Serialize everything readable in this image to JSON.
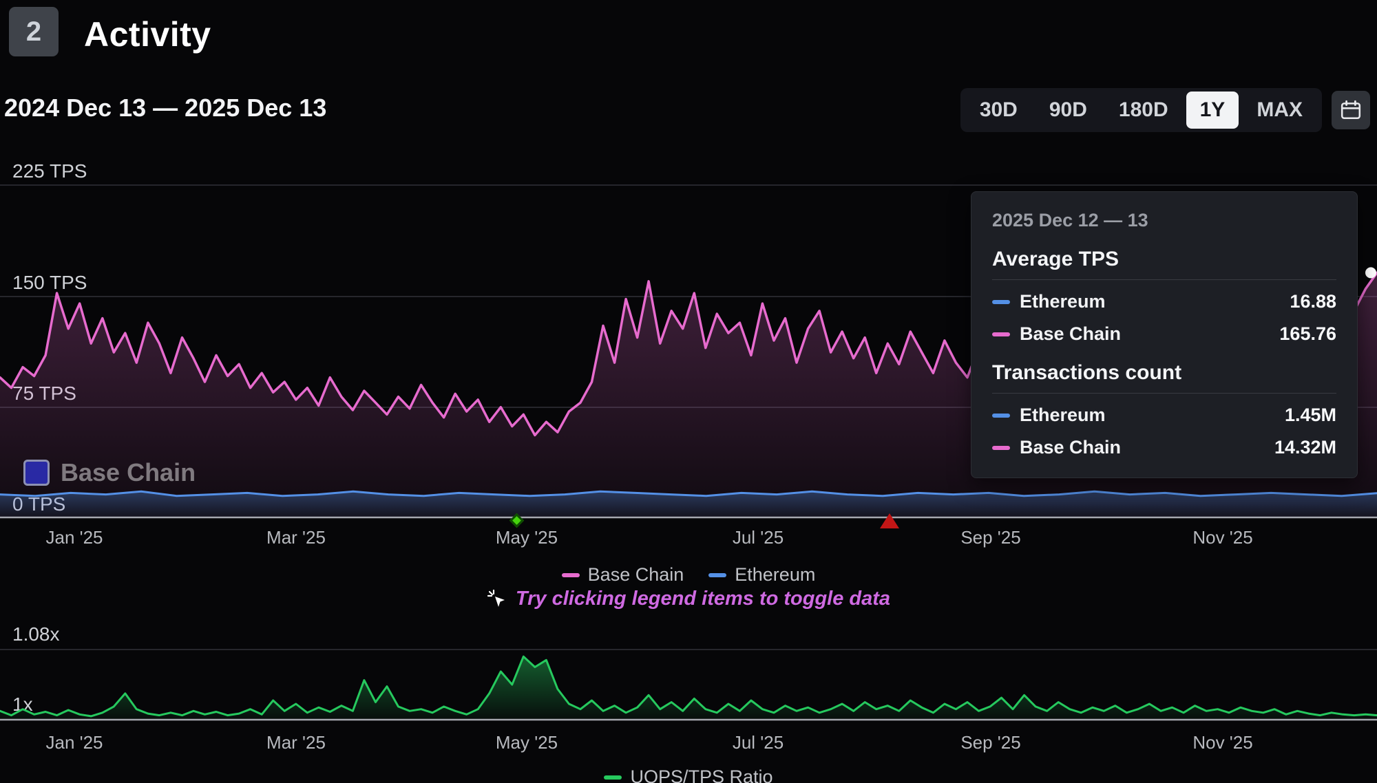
{
  "header": {
    "rank": "2",
    "title": "Activity",
    "date_range": "2024 Dec 13 — 2025 Dec 13"
  },
  "timeframe": {
    "options": [
      {
        "label": "30D",
        "active": false
      },
      {
        "label": "90D",
        "active": false
      },
      {
        "label": "180D",
        "active": false
      },
      {
        "label": "1Y",
        "active": true
      },
      {
        "label": "MAX",
        "active": false
      }
    ]
  },
  "icons": {
    "calendar": "calendar-icon",
    "hint": "cursor-click-icon"
  },
  "colors": {
    "base_chain": "#e76bce",
    "ethereum": "#5490e6",
    "ratio": "#26c95e",
    "hint_text": "#cf6ae2",
    "active_button_bg": "#f2f3f5",
    "milestone_diamond": "#46d40d",
    "milestone_triangle": "#c21616"
  },
  "watermark": {
    "label": "Base Chain"
  },
  "tooltip": {
    "date": "2025 Dec 12 — 13",
    "sections": [
      {
        "title": "Average TPS",
        "rows": [
          {
            "name": "Ethereum",
            "value": "16.88"
          },
          {
            "name": "Base Chain",
            "value": "165.76"
          }
        ]
      },
      {
        "title": "Transactions count",
        "rows": [
          {
            "name": "Ethereum",
            "value": "1.45M"
          },
          {
            "name": "Base Chain",
            "value": "14.32M"
          }
        ]
      }
    ]
  },
  "legend_tps": {
    "items": [
      {
        "label": "Base Chain"
      },
      {
        "label": "Ethereum"
      }
    ]
  },
  "hint": "Try clicking legend items to toggle data",
  "legend_ratio": {
    "items": [
      {
        "label": "UOPS/TPS Ratio"
      }
    ]
  },
  "chart_data": [
    {
      "type": "line",
      "title": "Average TPS",
      "x_range": [
        "2024 Dec 13",
        "2025 Dec 13"
      ],
      "x_labels": [
        "Jan '25",
        "Mar '25",
        "May '25",
        "Jul '25",
        "Sep '25",
        "Nov '25"
      ],
      "y_labels": [
        "225 TPS",
        "150 TPS",
        "75 TPS",
        "0 TPS"
      ],
      "ylim": [
        0,
        225
      ],
      "grid": "horizontal",
      "legend_position": "bottom",
      "series": [
        {
          "name": "Base Chain",
          "color": "#e76bce",
          "latest": 165.76,
          "values": [
            95,
            88,
            102,
            96,
            110,
            152,
            128,
            145,
            118,
            135,
            112,
            125,
            105,
            132,
            118,
            98,
            122,
            108,
            92,
            110,
            96,
            104,
            88,
            98,
            85,
            92,
            80,
            88,
            76,
            95,
            82,
            73,
            86,
            78,
            70,
            82,
            74,
            90,
            78,
            68,
            84,
            72,
            80,
            65,
            75,
            62,
            70,
            56,
            65,
            58,
            72,
            78,
            92,
            130,
            105,
            148,
            122,
            160,
            118,
            140,
            128,
            152,
            115,
            138,
            125,
            132,
            110,
            145,
            120,
            135,
            105,
            128,
            140,
            112,
            126,
            108,
            122,
            98,
            118,
            104,
            126,
            112,
            98,
            120,
            105,
            95,
            115,
            102,
            122,
            108,
            96,
            118,
            104,
            112,
            99,
            116,
            106,
            94,
            110,
            100,
            115,
            103,
            118,
            96,
            112,
            105,
            120,
            108,
            98,
            114,
            102,
            110,
            122,
            115,
            130,
            125,
            138,
            132,
            145,
            140,
            155,
            165.76
          ]
        },
        {
          "name": "Ethereum",
          "color": "#5490e6",
          "latest": 16.88,
          "values": [
            16,
            15,
            17,
            16,
            18,
            15,
            16,
            17,
            15,
            16,
            18,
            16,
            15,
            17,
            16,
            15,
            16,
            18,
            17,
            16,
            15,
            17,
            16,
            18,
            16,
            15,
            17,
            16,
            17,
            15,
            16,
            18,
            16,
            17,
            15,
            16,
            17,
            16,
            15,
            16.88
          ]
        }
      ],
      "markers": [
        {
          "shape": "diamond",
          "color": "#46d40d",
          "near_x_label": "May '25"
        },
        {
          "shape": "triangle",
          "color": "#c21616",
          "near_x_label": "Aug '25"
        }
      ]
    },
    {
      "type": "line",
      "title": "UOPS/TPS Ratio",
      "x_labels": [
        "Jan '25",
        "Mar '25",
        "May '25",
        "Jul '25",
        "Sep '25",
        "Nov '25"
      ],
      "y_labels": [
        "1.08x",
        "1x"
      ],
      "ylim": [
        1,
        1.08
      ],
      "grid": "horizontal",
      "legend_position": "bottom",
      "series": [
        {
          "name": "UOPS/TPS Ratio",
          "color": "#26c95e",
          "values": [
            1.01,
            1.005,
            1.012,
            1.006,
            1.009,
            1.005,
            1.011,
            1.006,
            1.004,
            1.008,
            1.015,
            1.03,
            1.012,
            1.007,
            1.005,
            1.008,
            1.005,
            1.01,
            1.006,
            1.009,
            1.005,
            1.007,
            1.012,
            1.006,
            1.022,
            1.01,
            1.018,
            1.008,
            1.014,
            1.009,
            1.016,
            1.01,
            1.045,
            1.02,
            1.038,
            1.015,
            1.01,
            1.012,
            1.008,
            1.015,
            1.01,
            1.006,
            1.012,
            1.03,
            1.055,
            1.04,
            1.072,
            1.06,
            1.068,
            1.035,
            1.018,
            1.012,
            1.022,
            1.01,
            1.016,
            1.008,
            1.014,
            1.028,
            1.012,
            1.02,
            1.01,
            1.024,
            1.012,
            1.008,
            1.018,
            1.01,
            1.022,
            1.012,
            1.008,
            1.016,
            1.01,
            1.014,
            1.008,
            1.012,
            1.018,
            1.01,
            1.02,
            1.012,
            1.016,
            1.01,
            1.022,
            1.014,
            1.008,
            1.018,
            1.012,
            1.02,
            1.01,
            1.015,
            1.025,
            1.012,
            1.028,
            1.015,
            1.01,
            1.02,
            1.012,
            1.008,
            1.014,
            1.01,
            1.016,
            1.008,
            1.012,
            1.018,
            1.01,
            1.014,
            1.008,
            1.016,
            1.01,
            1.012,
            1.008,
            1.014,
            1.01,
            1.008,
            1.012,
            1.006,
            1.01,
            1.007,
            1.005,
            1.008,
            1.006,
            1.005,
            1.006,
            1.005
          ]
        }
      ]
    }
  ]
}
